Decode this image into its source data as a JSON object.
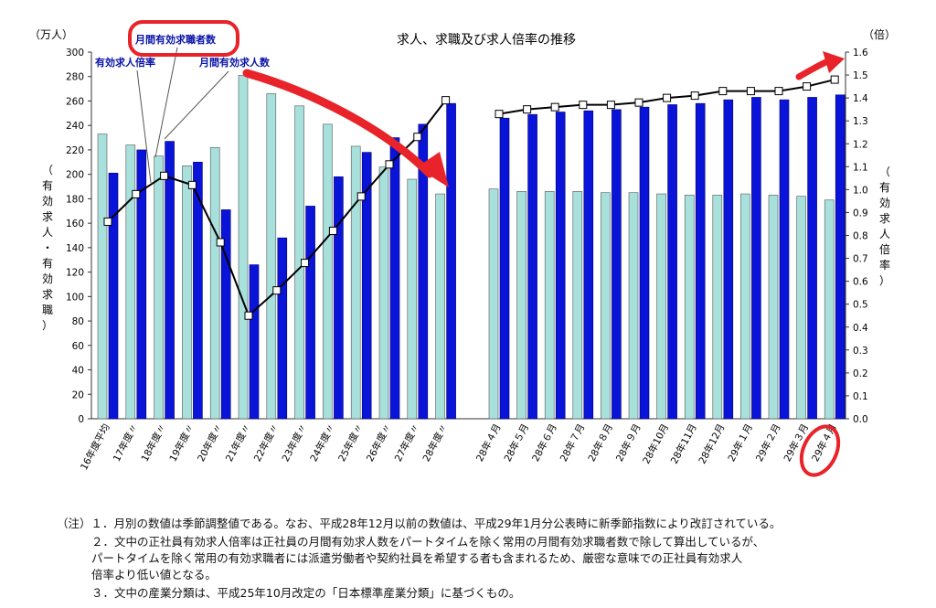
{
  "chart_data": {
    "type": "bar+line",
    "title": "求人、求職及び求人倍率の推移",
    "left_axis": {
      "unit": "（万人）",
      "label": "（有効求人・有効求職）",
      "ylim": [
        0,
        300
      ],
      "ticks": [
        0,
        20,
        40,
        60,
        80,
        100,
        120,
        140,
        160,
        180,
        200,
        220,
        240,
        260,
        280,
        300
      ]
    },
    "right_axis": {
      "unit": "（倍）",
      "label": "（有効求人倍率）",
      "ylim": [
        0,
        1.6
      ],
      "ticks": [
        "0.0",
        "0.1",
        "0.2",
        "0.3",
        "0.4",
        "0.5",
        "0.6",
        "0.7",
        "0.8",
        "0.9",
        "1.0",
        "1.1",
        "1.2",
        "1.3",
        "1.4",
        "1.5",
        "1.6"
      ]
    },
    "categories": [
      "16年度平均",
      "17年度〃",
      "18年度〃",
      "19年度〃",
      "20年度〃",
      "21年度〃",
      "22年度〃",
      "23年度〃",
      "24年度〃",
      "25年度〃",
      "26年度〃",
      "27年度〃",
      "28年度〃",
      "28年４月",
      "28年５月",
      "28年６月",
      "28年７月",
      "28年８月",
      "28年９月",
      "28年10月",
      "28年11月",
      "28年12月",
      "29年１月",
      "29年２月",
      "29年３月",
      "29年４月"
    ],
    "series": [
      {
        "name": "月間有効求職者数",
        "type": "bar",
        "color": "#a8e0dc",
        "values": [
          233,
          224,
          215,
          207,
          222,
          281,
          266,
          256,
          241,
          223,
          206,
          196,
          184,
          188,
          186,
          186,
          186,
          185,
          185,
          184,
          183,
          183,
          184,
          183,
          182,
          179
        ]
      },
      {
        "name": "月間有効求人数",
        "type": "bar",
        "color": "#0a14d8",
        "values": [
          201,
          220,
          227,
          210,
          171,
          126,
          148,
          174,
          198,
          218,
          230,
          241,
          258,
          246,
          249,
          251,
          252,
          253,
          255,
          257,
          258,
          261,
          263,
          261,
          263,
          265
        ]
      },
      {
        "name": "有効求人倍率",
        "type": "line",
        "axis": "right",
        "color": "#000000",
        "values": [
          0.86,
          0.98,
          1.06,
          1.02,
          0.77,
          0.45,
          0.56,
          0.68,
          0.82,
          0.97,
          1.11,
          1.23,
          1.39,
          1.33,
          1.35,
          1.36,
          1.37,
          1.37,
          1.38,
          1.4,
          1.41,
          1.43,
          1.43,
          1.43,
          1.45,
          1.48
        ]
      }
    ],
    "annotations": [
      "有効求人倍率",
      "月間有効求職者数",
      "月間有効求人数"
    ],
    "colors": {
      "highlight": "#e8232a",
      "bar_border": "#555555"
    }
  },
  "notes": [
    "（注）１．月別の数値は季節調整値である。なお、平成28年12月以前の数値は、平成29年1月分公表時に新季節指数により改訂されている。",
    "２．文中の正社員有効求人倍率は正社員の月間有効求人数をパートタイムを除く常用の月間有効求職者数で除して算出しているが、",
    "パートタイムを除く常用の有効求職者には派遣労働者や契約社員を希望する者も含まれるため、厳密な意味での正社員有効求人",
    "倍率より低い値となる。",
    "３．文中の産業分類は、平成25年10月改定の「日本標準産業分類」に基づくもの。"
  ]
}
